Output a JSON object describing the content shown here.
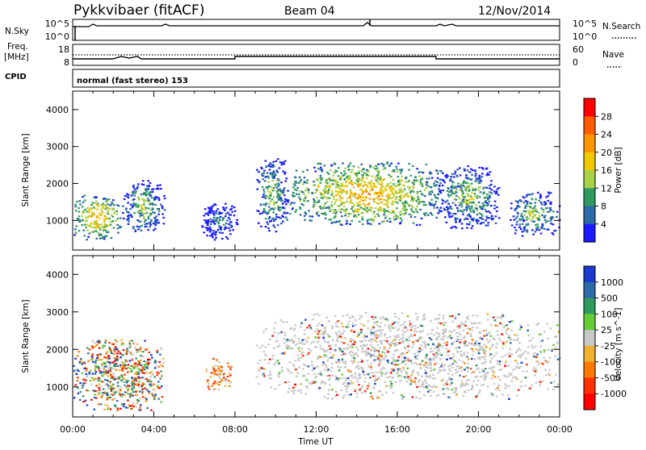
{
  "header": {
    "title": "Pykkvibaer (fitACF)",
    "beam": "Beam 04",
    "date": "12/Nov/2014"
  },
  "strip_nsky": {
    "label": "N.Sky",
    "left_ticks": [
      "10^5",
      "10^0"
    ],
    "right_ticks": [
      "10^5",
      "10^0"
    ],
    "right_label": "N.Search"
  },
  "strip_freq": {
    "label_top": "Freq.",
    "label_bottom": "[MHz]",
    "left_ticks": [
      "18",
      "8"
    ],
    "right_ticks": [
      "60",
      "0"
    ],
    "right_label": "Nave"
  },
  "cpid": {
    "label": "CPID",
    "text": "normal (fast stereo) 153"
  },
  "chart_data": [
    {
      "type": "heatmap",
      "variable": "Power",
      "ylabel": "Slant Range [km]",
      "ylim": [
        200,
        4500
      ],
      "yticks": [
        "1000",
        "2000",
        "3000",
        "4000"
      ],
      "xlim": [
        "00:00",
        "24:00"
      ],
      "colorbar": {
        "label": "Power [dB]",
        "ticks": [
          "28",
          "24",
          "20",
          "16",
          "12",
          "8",
          "4"
        ],
        "colors": [
          "#ff0000",
          "#ff5a00",
          "#ff9600",
          "#f0c800",
          "#a8d048",
          "#2f9a5f",
          "#2c6aa8",
          "#1a1aff"
        ]
      },
      "echo_regions": [
        {
          "t0": 0.0,
          "t1": 2.4,
          "r0": 500,
          "r1": 1700,
          "level": "high"
        },
        {
          "t0": 2.4,
          "t1": 4.5,
          "r0": 700,
          "r1": 2100,
          "level": "medium"
        },
        {
          "t0": 6.3,
          "t1": 8.1,
          "r0": 500,
          "r1": 1500,
          "level": "low"
        },
        {
          "t0": 9.0,
          "t1": 10.6,
          "r0": 700,
          "r1": 2700,
          "level": "medium"
        },
        {
          "t0": 10.6,
          "t1": 18.2,
          "r0": 900,
          "r1": 2600,
          "level": "high"
        },
        {
          "t0": 18.0,
          "t1": 21.0,
          "r0": 800,
          "r1": 2500,
          "level": "medium"
        },
        {
          "t0": 21.5,
          "t1": 24.0,
          "r0": 600,
          "r1": 1800,
          "level": "medium"
        }
      ]
    },
    {
      "type": "heatmap",
      "variable": "Velocity",
      "ylabel": "Slant Range [km]",
      "ylim": [
        200,
        4500
      ],
      "yticks": [
        "1000",
        "2000",
        "3000",
        "4000"
      ],
      "xlabel": "Time UT",
      "xticks": [
        "00:00",
        "04:00",
        "08:00",
        "12:00",
        "16:00",
        "20:00",
        "00:00"
      ],
      "colorbar": {
        "label": "Velocity [m s^-1]",
        "ticks": [
          "1000",
          "500",
          "100",
          "25",
          "-25",
          "-100",
          "-500",
          "-1000"
        ],
        "colors": [
          "#1a3ad0",
          "#2c6aa8",
          "#2f9a5f",
          "#66cc33",
          "#c8c8c8",
          "#f0b030",
          "#ff7800",
          "#ff3000",
          "#ff0000"
        ]
      },
      "echo_regions": [
        {
          "t0": 0.0,
          "t1": 4.5,
          "r0": 400,
          "r1": 2300,
          "level": "mixed"
        },
        {
          "t0": 6.5,
          "t1": 7.8,
          "r0": 900,
          "r1": 1800,
          "level": "negative"
        },
        {
          "t0": 9.0,
          "t1": 24.0,
          "r0": 700,
          "r1": 3000,
          "level": "ground-scatter"
        }
      ]
    }
  ]
}
